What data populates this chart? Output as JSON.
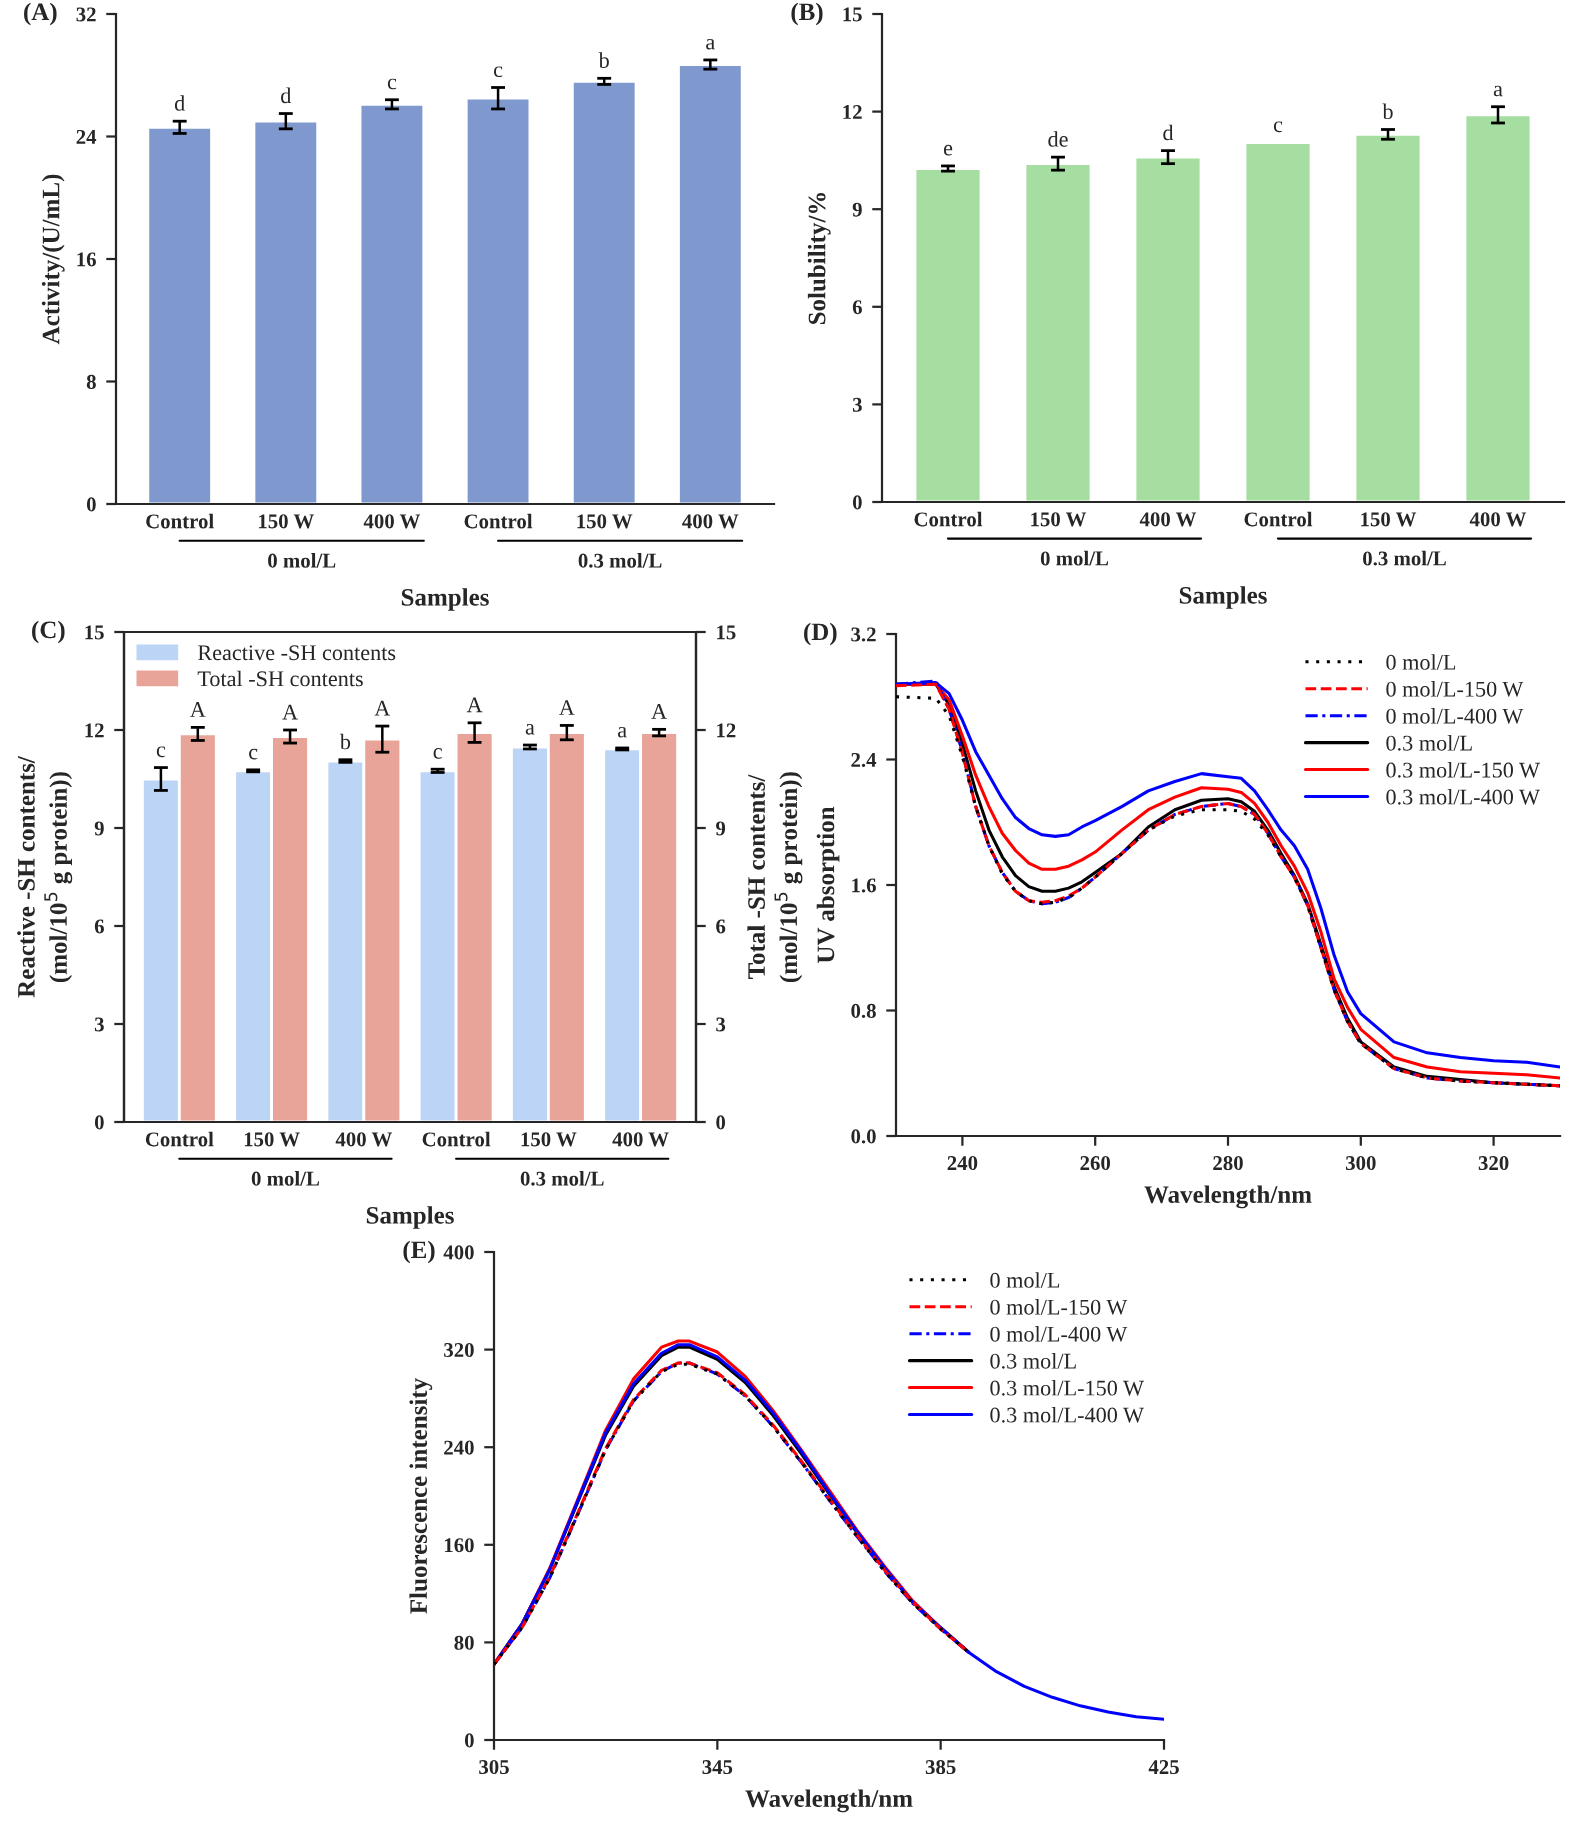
{
  "chart_data": [
    {
      "type": "bar",
      "title": "(A)",
      "xlabel": "Samples",
      "ylabel": "Activity/(U/mL)",
      "categories": [
        "Control",
        "150 W",
        "400 W",
        "Control",
        "150 W",
        "400 W"
      ],
      "values": [
        24.6,
        25.0,
        26.1,
        26.5,
        27.6,
        28.7
      ],
      "errors": [
        0.4,
        0.5,
        0.3,
        0.7,
        0.2,
        0.3
      ],
      "value_labels": [
        "d",
        "d",
        "c",
        "c",
        "b",
        "a"
      ],
      "color": "#7f99cf",
      "ylim": [
        0,
        32
      ],
      "yticks": [
        0,
        8,
        16,
        24,
        32
      ],
      "grid": false,
      "legend": false,
      "annotations": [
        "0 mol/L",
        "0.3 mol/L"
      ]
    },
    {
      "type": "bar",
      "title": "(B)",
      "xlabel": "Samples",
      "ylabel": "Solubility/%",
      "categories": [
        "Control",
        "150 W",
        "400 W",
        "Control",
        "150 W",
        "400 W"
      ],
      "values": [
        10.25,
        10.4,
        10.6,
        11.05,
        11.3,
        11.9
      ],
      "errors": [
        0.08,
        0.2,
        0.2,
        null,
        0.15,
        0.25
      ],
      "value_labels": [
        "e",
        "de",
        "d",
        "c",
        "b",
        "a"
      ],
      "color": "#a5dea0",
      "ylim": [
        0,
        15
      ],
      "yticks": [
        0,
        3,
        6,
        9,
        12,
        15
      ],
      "grid": false,
      "legend": false,
      "annotations": [
        "0 mol/L",
        "0.3 mol/L"
      ]
    },
    {
      "type": "bar",
      "title": "(C)",
      "xlabel": "Samples",
      "ylabel": "Reactive -SH contents/\n(mol/10$^{5}$ g protein))",
      "y2label": "Total -SH contents/\n(mol/10$^{5}$ g protein))",
      "categories": [
        "Control",
        "150 W",
        "400 W",
        "Control",
        "150 W",
        "400 W"
      ],
      "series": [
        {
          "name": "Reactive -SH contents",
          "color": "#bcd4f5",
          "values": [
            10.5,
            10.75,
            11.05,
            10.75,
            11.48,
            11.42
          ],
          "errors": [
            0.35,
            0.03,
            0.04,
            0.05,
            0.06,
            0.03
          ],
          "value_labels": [
            "c",
            "c",
            "b",
            "c",
            "a",
            "a"
          ]
        },
        {
          "name": "Total -SH contents",
          "color": "#e8a498",
          "axis": "y2",
          "values": [
            11.88,
            11.8,
            11.72,
            11.92,
            11.92,
            11.92
          ],
          "errors": [
            0.2,
            0.2,
            0.4,
            0.3,
            0.22,
            0.1
          ],
          "value_labels": [
            "A",
            "A",
            "A",
            "A",
            "A",
            "A"
          ]
        }
      ],
      "ylim": [
        0,
        15
      ],
      "yticks": [
        0,
        3,
        6,
        9,
        12,
        15
      ],
      "y2lim": [
        0,
        15
      ],
      "y2ticks": [
        0,
        3,
        6,
        9,
        12,
        15
      ],
      "grid": false,
      "legend": "top left",
      "annotations": [
        "0 mol/L",
        "0.3 mol/L"
      ]
    },
    {
      "type": "line",
      "title": "(D)",
      "xlabel": "Wavelength/nm",
      "ylabel": "UV absorption",
      "marker": "none",
      "x": [
        230,
        236,
        238,
        240,
        242,
        244,
        246,
        248,
        250,
        252,
        254,
        256,
        258,
        260,
        264,
        268,
        272,
        276,
        280,
        282,
        284,
        286,
        288,
        290,
        292,
        294,
        296,
        298,
        300,
        305,
        310,
        315,
        320,
        325,
        330
      ],
      "series": [
        {
          "name": "0 mol/L",
          "color": "#000000",
          "line_style": "dotted",
          "values": [
            2.8,
            2.79,
            2.68,
            2.42,
            2.1,
            1.85,
            1.67,
            1.56,
            1.5,
            1.48,
            1.49,
            1.52,
            1.58,
            1.65,
            1.8,
            1.95,
            2.04,
            2.08,
            2.08,
            2.07,
            2.02,
            1.92,
            1.78,
            1.65,
            1.47,
            1.2,
            0.93,
            0.73,
            0.59,
            0.43,
            0.37,
            0.35,
            0.34,
            0.33,
            0.32
          ]
        },
        {
          "name": "0 mol/L-150 W",
          "color": "#ff0000",
          "line_style": "dashed",
          "values": [
            2.87,
            2.88,
            2.72,
            2.44,
            2.1,
            1.85,
            1.68,
            1.56,
            1.5,
            1.49,
            1.5,
            1.53,
            1.58,
            1.65,
            1.8,
            1.95,
            2.05,
            2.1,
            2.12,
            2.1,
            2.05,
            1.93,
            1.78,
            1.65,
            1.47,
            1.2,
            0.93,
            0.73,
            0.59,
            0.43,
            0.37,
            0.35,
            0.34,
            0.33,
            0.32
          ]
        },
        {
          "name": "0 mol/L-400 W",
          "color": "#0000ff",
          "line_style": "dashdot",
          "values": [
            2.88,
            2.9,
            2.72,
            2.45,
            2.1,
            1.85,
            1.68,
            1.56,
            1.5,
            1.48,
            1.49,
            1.52,
            1.58,
            1.65,
            1.8,
            1.95,
            2.05,
            2.1,
            2.12,
            2.1,
            2.05,
            1.93,
            1.78,
            1.65,
            1.47,
            1.2,
            0.93,
            0.73,
            0.59,
            0.43,
            0.37,
            0.35,
            0.34,
            0.33,
            0.32
          ]
        },
        {
          "name": "0.3 mol/L",
          "color": "#000000",
          "line_style": "solid",
          "values": [
            2.88,
            2.88,
            2.75,
            2.5,
            2.2,
            1.95,
            1.78,
            1.66,
            1.59,
            1.56,
            1.56,
            1.58,
            1.62,
            1.68,
            1.8,
            1.97,
            2.08,
            2.14,
            2.15,
            2.13,
            2.07,
            1.95,
            1.8,
            1.66,
            1.48,
            1.22,
            0.95,
            0.75,
            0.6,
            0.44,
            0.38,
            0.36,
            0.34,
            0.33,
            0.32
          ]
        },
        {
          "name": "0.3 mol/L-150 W",
          "color": "#ff0000",
          "line_style": "solid",
          "values": [
            2.88,
            2.88,
            2.78,
            2.55,
            2.3,
            2.1,
            1.93,
            1.82,
            1.74,
            1.7,
            1.7,
            1.72,
            1.76,
            1.81,
            1.95,
            2.08,
            2.16,
            2.22,
            2.21,
            2.19,
            2.12,
            2.0,
            1.85,
            1.72,
            1.55,
            1.3,
            1.0,
            0.82,
            0.68,
            0.5,
            0.44,
            0.41,
            0.4,
            0.39,
            0.37
          ]
        },
        {
          "name": "0.3 mol/L-400 W",
          "color": "#0000ff",
          "line_style": "solid",
          "values": [
            2.88,
            2.89,
            2.82,
            2.65,
            2.45,
            2.3,
            2.15,
            2.03,
            1.96,
            1.92,
            1.91,
            1.92,
            1.97,
            2.01,
            2.1,
            2.2,
            2.26,
            2.31,
            2.29,
            2.28,
            2.2,
            2.08,
            1.95,
            1.85,
            1.7,
            1.45,
            1.15,
            0.92,
            0.78,
            0.6,
            0.53,
            0.5,
            0.48,
            0.47,
            0.44
          ]
        }
      ],
      "xlim": [
        230,
        330
      ],
      "xticks": [
        240,
        260,
        280,
        300,
        320
      ],
      "ylim": [
        0,
        3.2
      ],
      "yticks": [
        {
          "value": 0,
          "label": "0.0"
        },
        0.8,
        1.6,
        2.4,
        3.2
      ],
      "grid": false,
      "legend": "top right"
    },
    {
      "type": "line",
      "title": "(E)",
      "xlabel": "Wavelength/nm",
      "ylabel": "Fluorescence intensity",
      "marker": "none",
      "x": [
        305,
        310,
        315,
        320,
        325,
        330,
        335,
        338,
        340,
        345,
        350,
        355,
        360,
        365,
        370,
        375,
        380,
        385,
        390,
        395,
        400,
        405,
        410,
        415,
        420,
        425
      ],
      "series": [
        {
          "name": "0 mol/L",
          "color": "#000000",
          "line_style": "dotted",
          "values": [
            62,
            92,
            133,
            185,
            238,
            278,
            302,
            308,
            308,
            300,
            282,
            257,
            228,
            197,
            167,
            138,
            112,
            91,
            72,
            null,
            null,
            null,
            null,
            null,
            null,
            null
          ]
        },
        {
          "name": "0 mol/L-150 W",
          "color": "#ff0000",
          "line_style": "dashed",
          "values": [
            62,
            92,
            134,
            186,
            239,
            279,
            303,
            309,
            309,
            301,
            283,
            258,
            229,
            198,
            168,
            139,
            113,
            91,
            72,
            null,
            null,
            null,
            null,
            null,
            null,
            null
          ]
        },
        {
          "name": "0 mol/L-400 W",
          "color": "#0000ff",
          "line_style": "dashdot",
          "values": [
            62,
            92,
            133,
            185,
            238,
            278,
            302,
            309,
            309,
            300,
            282,
            257,
            228,
            197,
            167,
            138,
            112,
            91,
            72,
            null,
            null,
            null,
            null,
            null,
            null,
            null
          ]
        },
        {
          "name": "0.3 mol/L",
          "color": "#000000",
          "line_style": "solid",
          "values": [
            62,
            95,
            140,
            195,
            250,
            290,
            315,
            322,
            322,
            312,
            293,
            266,
            235,
            202,
            170,
            140,
            113,
            92,
            72,
            null,
            null,
            null,
            null,
            null,
            null,
            null
          ]
        },
        {
          "name": "0.3 mol/L-150 W",
          "color": "#ff0000",
          "line_style": "solid",
          "values": [
            62,
            95,
            141,
            197,
            254,
            296,
            322,
            327,
            327,
            318,
            298,
            270,
            238,
            205,
            172,
            142,
            114,
            92,
            72,
            null,
            null,
            null,
            null,
            null,
            null,
            null
          ]
        },
        {
          "name": "0.3 mol/L-400 W",
          "color": "#0000ff",
          "line_style": "solid",
          "values": [
            62,
            95,
            140,
            196,
            252,
            292,
            317,
            324,
            324,
            314,
            295,
            268,
            237,
            203,
            171,
            141,
            113,
            92,
            72,
            56,
            44,
            35,
            28,
            23,
            19,
            17
          ]
        }
      ],
      "xlim": [
        305,
        425
      ],
      "xticks": [
        305,
        345,
        385,
        425
      ],
      "ylim": [
        0,
        400
      ],
      "yticks": [
        0,
        80,
        160,
        240,
        320,
        400
      ],
      "grid": false,
      "legend": "top right"
    }
  ]
}
